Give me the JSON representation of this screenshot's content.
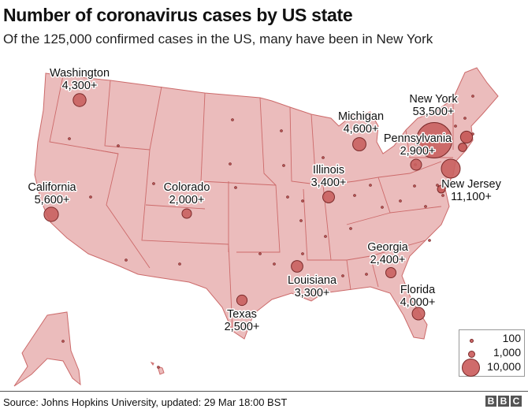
{
  "title": "Number of coronavirus cases by US state",
  "subtitle": "Of the 125,000 confirmed cases in the US, many have been in New York",
  "colors": {
    "state_fill": "#ebbcbc",
    "state_stroke": "#cc6a6a",
    "circle_fill": "#c9605f",
    "circle_stroke": "#7a2a2a"
  },
  "labeled_states": [
    {
      "name": "Washington",
      "cases_label": "4,300+",
      "cases": 4300
    },
    {
      "name": "California",
      "cases_label": "5,600+",
      "cases": 5600
    },
    {
      "name": "Colorado",
      "cases_label": "2,000+",
      "cases": 2000
    },
    {
      "name": "Texas",
      "cases_label": "2,500+",
      "cases": 2500
    },
    {
      "name": "Louisiana",
      "cases_label": "3,300+",
      "cases": 3300
    },
    {
      "name": "Illinois",
      "cases_label": "3,400+",
      "cases": 3400
    },
    {
      "name": "Michigan",
      "cases_label": "4,600+",
      "cases": 4600
    },
    {
      "name": "New York",
      "cases_label": "53,500+",
      "cases": 53500
    },
    {
      "name": "Pennsylvania",
      "cases_label": "2,900+",
      "cases": 2900
    },
    {
      "name": "New Jersey",
      "cases_label": "11,100+",
      "cases": 11100
    },
    {
      "name": "Georgia",
      "cases_label": "2,400+",
      "cases": 2400
    },
    {
      "name": "Florida",
      "cases_label": "4,000+",
      "cases": 4000
    }
  ],
  "legend": [
    {
      "label": "100",
      "value": 100
    },
    {
      "label": "1,000",
      "value": 1000
    },
    {
      "label": "10,000",
      "value": 10000
    }
  ],
  "source": "Source: Johns Hopkins University, updated: 29 Mar 18:00 BST",
  "logo": [
    "B",
    "B",
    "C"
  ]
}
